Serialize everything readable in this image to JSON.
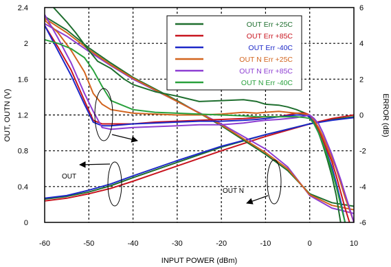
{
  "chart_data": {
    "type": "line",
    "xlabel": "INPUT POWER (dBm)",
    "ylabel_left": "OUT, OUTN (V)",
    "ylabel_right": "ERROR (dB)",
    "xlim": [
      -60,
      10
    ],
    "ylim_left": [
      0,
      2.4
    ],
    "ylim_right": [
      -6,
      6
    ],
    "x_ticks": [
      -60,
      -50,
      -40,
      -30,
      -20,
      -10,
      0,
      10
    ],
    "y_left_ticks": [
      0,
      0.4,
      0.8,
      1.2,
      1.6,
      2,
      2.4
    ],
    "y_right_ticks": [
      -6,
      -4,
      -2,
      0,
      2,
      4,
      6
    ],
    "x_tick_labels": [
      "-60",
      "-50",
      "-40",
      "-30",
      "-20",
      "-10",
      "0",
      "10"
    ],
    "y_left_tick_labels": [
      "0",
      "0.4",
      "0.8",
      "1.2",
      "1.6",
      "2",
      "2.4"
    ],
    "y_right_tick_labels": [
      "-6",
      "-4",
      "-2",
      "0",
      "2",
      "4",
      "6"
    ],
    "grid": true,
    "legend_position": "top-right",
    "legend": [
      {
        "label": "OUT Err +25C",
        "color": "#1e6e2e"
      },
      {
        "label": "OUT Err +85C",
        "color": "#c8141e"
      },
      {
        "label": "OUT Err -40C",
        "color": "#1c28c8"
      },
      {
        "label": "OUT N Err +25C",
        "color": "#d2641e"
      },
      {
        "label": "OUT N Err +85C",
        "color": "#8c3cd2"
      },
      {
        "label": "OUT N Err -40C",
        "color": "#28a03c"
      }
    ],
    "annotations": {
      "out": "OUT",
      "outn": "OUT N"
    },
    "series": [
      {
        "axis": "left",
        "color": "#1e6e2e",
        "x": [
          -60,
          -55,
          -50,
          -45,
          -40,
          -30,
          -20,
          -10,
          -5,
          0,
          5,
          10
        ],
        "y": [
          0.26,
          0.29,
          0.34,
          0.41,
          0.5,
          0.67,
          0.84,
          0.98,
          1.04,
          1.1,
          1.15,
          1.18
        ]
      },
      {
        "axis": "left",
        "color": "#c8141e",
        "x": [
          -60,
          -55,
          -50,
          -45,
          -40,
          -30,
          -20,
          -10,
          -5,
          0,
          5,
          10
        ],
        "y": [
          0.24,
          0.27,
          0.32,
          0.38,
          0.46,
          0.63,
          0.8,
          0.96,
          1.03,
          1.1,
          1.16,
          1.2
        ]
      },
      {
        "axis": "left",
        "color": "#1c28c8",
        "x": [
          -60,
          -55,
          -50,
          -45,
          -40,
          -30,
          -20,
          -10,
          -5,
          0,
          5,
          10
        ],
        "y": [
          0.27,
          0.3,
          0.36,
          0.43,
          0.52,
          0.69,
          0.85,
          0.98,
          1.04,
          1.1,
          1.14,
          1.17
        ]
      },
      {
        "axis": "left",
        "color": "#1e6e2e",
        "x": [
          -60,
          -55,
          -50,
          -45,
          -40,
          -30,
          -20,
          -10,
          -5,
          0,
          5,
          10
        ],
        "y": [
          2.3,
          2.15,
          1.95,
          1.78,
          1.62,
          1.36,
          1.08,
          0.76,
          0.58,
          0.32,
          0.22,
          0.18
        ]
      },
      {
        "axis": "left",
        "color": "#8c3cd2",
        "x": [
          -60,
          -55,
          -50,
          -45,
          -40,
          -30,
          -20,
          -10,
          -5,
          0,
          5,
          10
        ],
        "y": [
          2.22,
          2.08,
          1.91,
          1.75,
          1.6,
          1.35,
          1.1,
          0.82,
          0.62,
          0.3,
          0.16,
          0.1
        ]
      },
      {
        "axis": "left",
        "color": "#d2641e",
        "x": [
          -60,
          -55,
          -50,
          -45,
          -40,
          -30,
          -20,
          -10,
          -5,
          0,
          5,
          10
        ],
        "y": [
          2.28,
          2.12,
          1.93,
          1.76,
          1.61,
          1.35,
          1.09,
          0.78,
          0.6,
          0.31,
          0.19,
          0.14
        ]
      },
      {
        "axis": "right",
        "color": "#1e6e2e",
        "x": [
          -58,
          -55,
          -53,
          -50,
          -48,
          -45,
          -42,
          -40,
          -35,
          -30,
          -25,
          -20,
          -15,
          -12,
          -10,
          -7,
          -5,
          -3,
          -1,
          1,
          2,
          3,
          4,
          5,
          6,
          7
        ],
        "y": [
          6.0,
          5.2,
          4.6,
          3.6,
          3.0,
          2.6,
          2.0,
          1.7,
          1.3,
          1.05,
          0.75,
          0.8,
          0.85,
          0.75,
          0.6,
          0.55,
          0.45,
          0.3,
          0.1,
          -0.4,
          -1.0,
          -1.7,
          -2.5,
          -3.4,
          -4.5,
          -6.0
        ]
      },
      {
        "axis": "right",
        "color": "#c8141e",
        "x": [
          -60,
          -57,
          -54,
          -51,
          -49,
          -47,
          -45,
          -40,
          -35,
          -30,
          -25,
          -20,
          -15,
          -12,
          -10,
          -7,
          -5,
          -3,
          -1,
          0,
          1,
          2,
          3,
          4,
          5,
          6,
          7,
          8,
          9
        ],
        "y": [
          5.0,
          3.8,
          2.5,
          0.8,
          -0.3,
          -0.5,
          -0.5,
          -0.5,
          -0.4,
          -0.35,
          -0.3,
          -0.25,
          -0.2,
          -0.15,
          -0.1,
          -0.1,
          0.0,
          0.1,
          0.1,
          0.0,
          -0.3,
          -0.8,
          -1.4,
          -2.0,
          -2.6,
          -3.4,
          -4.3,
          -5.2,
          -6.0
        ]
      },
      {
        "axis": "right",
        "color": "#1c28c8",
        "x": [
          -60,
          -57,
          -54,
          -51,
          -49,
          -47,
          -45,
          -40,
          -35,
          -30,
          -25,
          -20,
          -15,
          -12,
          -10,
          -7,
          -5,
          -3,
          -1,
          0,
          1,
          2,
          3,
          4,
          5,
          6,
          7,
          8
        ],
        "y": [
          5.0,
          3.6,
          2.2,
          0.6,
          -0.4,
          -0.6,
          -0.6,
          -0.5,
          -0.45,
          -0.4,
          -0.35,
          -0.35,
          -0.3,
          -0.25,
          -0.2,
          -0.1,
          -0.05,
          0.0,
          0.0,
          -0.1,
          -0.5,
          -1.0,
          -1.6,
          -2.2,
          -2.9,
          -3.8,
          -4.8,
          -6.0
        ]
      },
      {
        "axis": "right",
        "color": "#d2641e",
        "x": [
          -60,
          -57,
          -54,
          -51,
          -49,
          -47,
          -45,
          -40,
          -35,
          -30,
          -25,
          -20,
          -15,
          -12,
          -10,
          -7,
          -5,
          -3,
          -1,
          0,
          1,
          2,
          3,
          4,
          5,
          6,
          7,
          8,
          9,
          10
        ],
        "y": [
          5.3,
          4.6,
          3.6,
          2.4,
          1.2,
          0.6,
          0.3,
          0.1,
          0.05,
          0.0,
          0.0,
          0.05,
          0.15,
          0.1,
          0.15,
          0.2,
          0.15,
          0.1,
          0.05,
          0.0,
          -0.3,
          -0.7,
          -1.2,
          -1.8,
          -2.4,
          -3.0,
          -3.8,
          -4.6,
          -5.3,
          -6.0
        ]
      },
      {
        "axis": "right",
        "color": "#8c3cd2",
        "x": [
          -60,
          -57,
          -54,
          -51,
          -49,
          -47,
          -45,
          -40,
          -35,
          -30,
          -25,
          -20,
          -15,
          -12,
          -10,
          -7,
          -5,
          -3,
          -1,
          0,
          1,
          2,
          3,
          4,
          5,
          6,
          7,
          8,
          9,
          10
        ],
        "y": [
          5.6,
          4.3,
          2.9,
          1.2,
          0.2,
          -0.7,
          -0.8,
          -0.7,
          -0.65,
          -0.6,
          -0.55,
          -0.55,
          -0.45,
          -0.35,
          -0.3,
          -0.25,
          -0.2,
          -0.15,
          -0.05,
          0.0,
          -0.2,
          -0.5,
          -1.0,
          -1.6,
          -2.2,
          -2.9,
          -3.6,
          -4.4,
          -5.2,
          -6.0
        ]
      },
      {
        "axis": "right",
        "color": "#28a03c",
        "x": [
          -60,
          -57,
          -54,
          -51,
          -49,
          -47,
          -45,
          -40,
          -35,
          -30,
          -25,
          -20,
          -15,
          -12,
          -10,
          -7,
          -5,
          -3,
          -1,
          0,
          1,
          2,
          3,
          4,
          5,
          6,
          7,
          8
        ],
        "y": [
          4.2,
          4.0,
          3.7,
          3.2,
          2.5,
          1.6,
          0.8,
          0.3,
          0.15,
          0.1,
          0.05,
          0.0,
          -0.05,
          -0.1,
          -0.1,
          -0.1,
          -0.1,
          -0.1,
          -0.15,
          -0.2,
          -0.5,
          -1.0,
          -1.6,
          -2.3,
          -3.1,
          -4.0,
          -5.0,
          -6.0
        ]
      }
    ]
  }
}
